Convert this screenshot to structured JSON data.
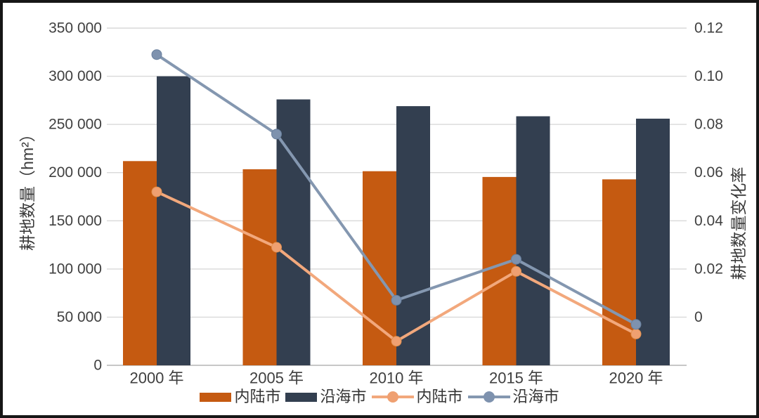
{
  "chart_data": {
    "type": "combo-bar-line",
    "title": "",
    "categories": [
      "2000 年",
      "2005 年",
      "2010 年",
      "2015 年",
      "2020 年"
    ],
    "category_slugs": [
      "2000",
      "2005",
      "2010",
      "2015",
      "2020"
    ],
    "bar_series": [
      {
        "name": "内陆市",
        "slug": "inland",
        "color": "#C55A11",
        "axis": "left",
        "values": [
          212000,
          203500,
          201500,
          195500,
          193000
        ]
      },
      {
        "name": "沿海市",
        "slug": "coastal",
        "color": "#333F50",
        "axis": "left",
        "values": [
          300000,
          276000,
          269000,
          258500,
          256000
        ]
      }
    ],
    "line_series": [
      {
        "name": "内陆市",
        "slug": "inland",
        "color": "#F2A87C",
        "dot_color": "#EFA071",
        "dot_edge": "#E2914F",
        "axis": "right",
        "values": [
          0.052,
          0.029,
          -0.01,
          0.019,
          -0.007
        ]
      },
      {
        "name": "沿海市",
        "slug": "coastal",
        "color": "#8497B0",
        "dot_color": "#7E92AE",
        "dot_edge": "#69809E",
        "axis": "right",
        "values": [
          0.109,
          0.076,
          0.007,
          0.024,
          -0.003
        ]
      }
    ],
    "left_axis": {
      "title": "耕地数量（hm²）",
      "min": 0,
      "max": 350000,
      "ticks": [
        0,
        50000,
        100000,
        150000,
        200000,
        250000,
        300000,
        350000
      ],
      "tick_labels": [
        "0",
        "50 000",
        "100 000",
        "150 000",
        "200 000",
        "250 000",
        "300 000",
        "350 000"
      ]
    },
    "right_axis": {
      "title": "耕地数量变化率",
      "min": -0.02,
      "max": 0.12,
      "ticks": [
        0,
        0.02,
        0.04,
        0.06,
        0.08,
        0.1,
        0.12
      ],
      "tick_labels": [
        "0",
        "0.02",
        "0.04",
        "0.06",
        "0.08",
        "0.10",
        "0.12"
      ]
    },
    "grid": {
      "show": true,
      "color": "#D9D9D9",
      "baseline_color": "#BFBFBF"
    },
    "text_color": "#3F3F3F",
    "legend_position": "bottom",
    "legend": {
      "items": [
        {
          "label": "内陆市",
          "marker": "bar",
          "color": "#C55A11"
        },
        {
          "label": "沿海市",
          "marker": "bar",
          "color": "#333F50"
        },
        {
          "label": "内陆市",
          "marker": "line-dot",
          "color": "#F2A87C",
          "dot_color": "#EFA071"
        },
        {
          "label": "沿海市",
          "marker": "line-dot",
          "color": "#8497B0",
          "dot_color": "#7E92AE"
        }
      ]
    }
  }
}
